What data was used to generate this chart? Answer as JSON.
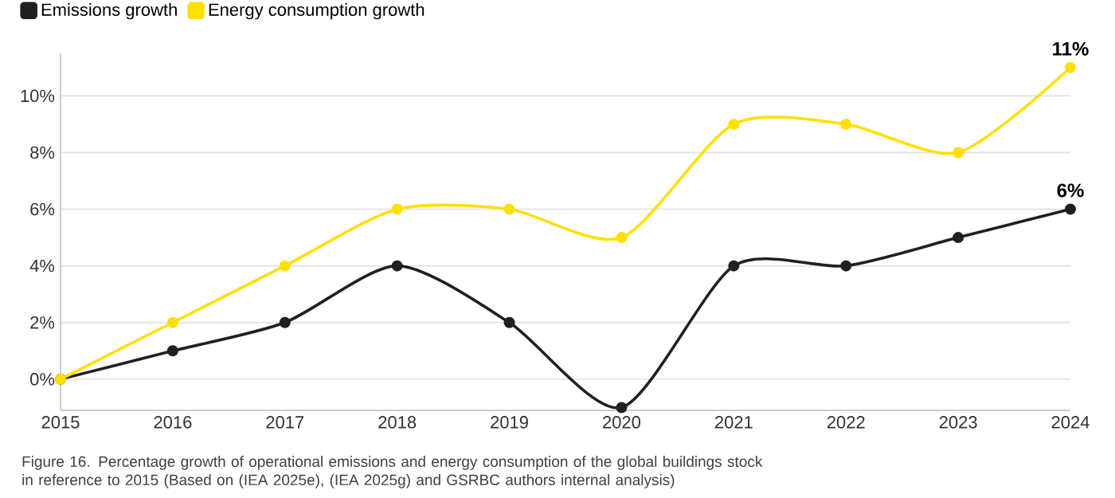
{
  "chart_data": {
    "type": "line",
    "x": [
      2015,
      2016,
      2017,
      2018,
      2019,
      2020,
      2021,
      2022,
      2023,
      2024
    ],
    "series": [
      {
        "name": "Emissions growth",
        "color": "#231f20",
        "values": [
          0,
          1,
          2,
          4,
          2,
          -1,
          4,
          4,
          5,
          6
        ],
        "value_labels": [
          null,
          null,
          null,
          null,
          null,
          null,
          null,
          null,
          null,
          "6%"
        ]
      },
      {
        "name": "Energy consumption growth",
        "color": "#ffe000",
        "values": [
          0,
          2,
          4,
          6,
          6,
          5,
          9,
          9,
          8,
          11
        ],
        "value_labels": [
          null,
          null,
          null,
          null,
          null,
          null,
          null,
          null,
          null,
          "11%"
        ]
      }
    ],
    "xlim": [
      2015,
      2024
    ],
    "xticks": [
      2015,
      2016,
      2017,
      2018,
      2019,
      2020,
      2021,
      2022,
      2023,
      2024
    ],
    "ylim": [
      -1.1,
      11.5
    ],
    "yticks": [
      {
        "value": 0,
        "label": "0%"
      },
      {
        "value": 2,
        "label": "2%"
      },
      {
        "value": 4,
        "label": "4%"
      },
      {
        "value": 6,
        "label": "6%"
      },
      {
        "value": 8,
        "label": "8%"
      },
      {
        "value": 10,
        "label": "10%"
      }
    ],
    "grid": "y",
    "legend": "top left",
    "marker": "circle",
    "line_style": "solid",
    "annotations": [
      "Figure 16. Percentage growth of operational emissions and energy consumption of the global buildings stock in reference to 2015 (Based on (IEA 2025e), (IEA 2025g) and GSRBC authors internal analysis)"
    ]
  }
}
